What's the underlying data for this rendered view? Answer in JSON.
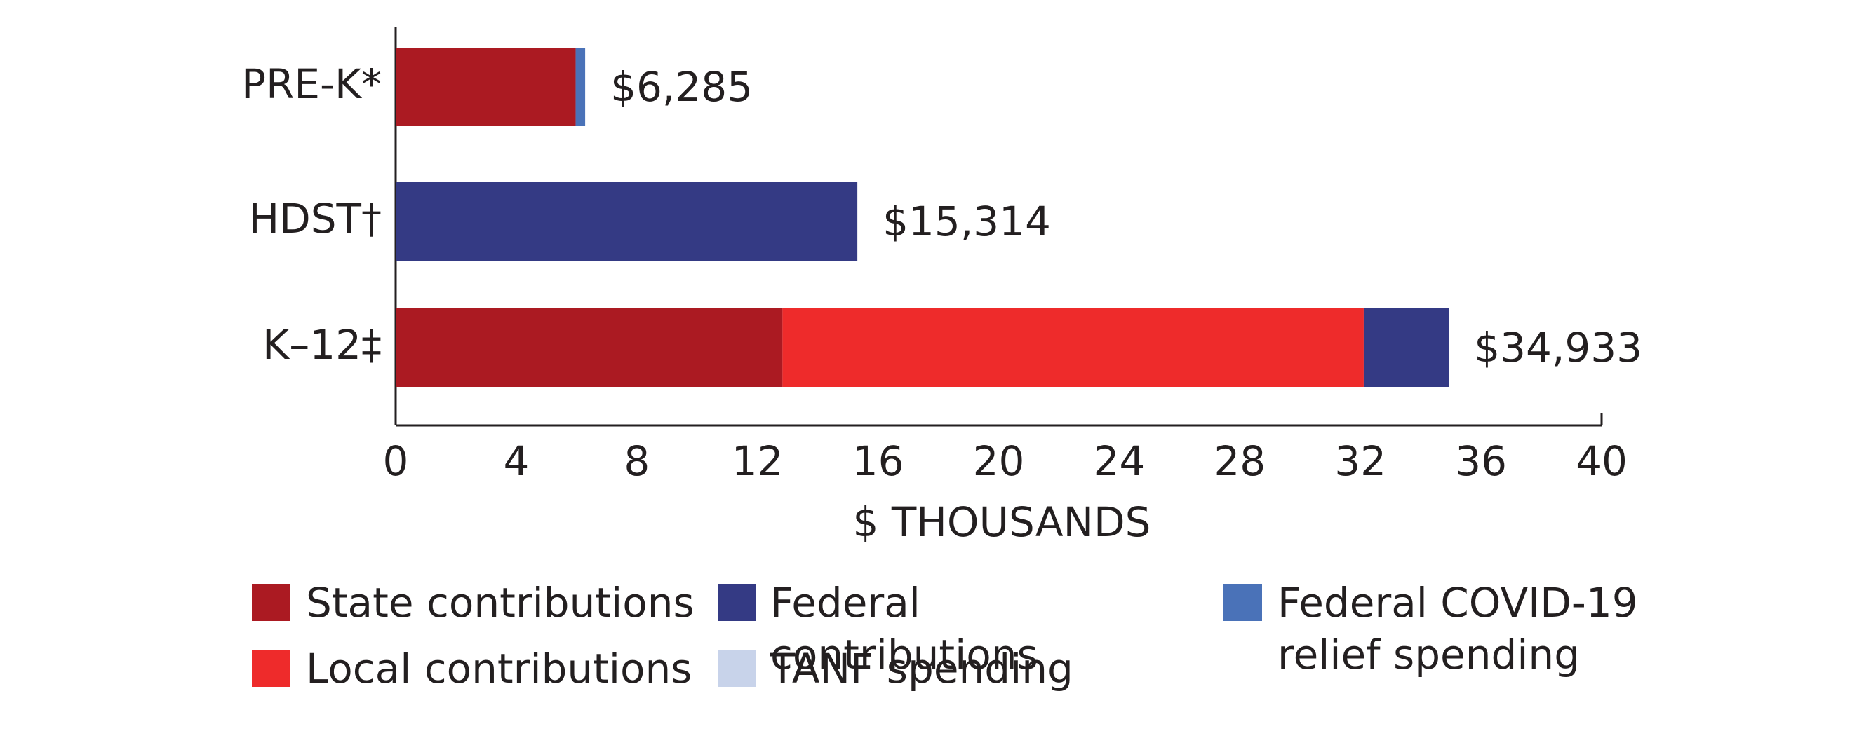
{
  "chart_data": {
    "type": "stacked-bar-horizontal",
    "categories": [
      "PRE-K*",
      "HDST†",
      "K–12‡"
    ],
    "series": [
      {
        "name": "State contributions",
        "color": "#ab1a22",
        "values": [
          5.97,
          null,
          12.83
        ]
      },
      {
        "name": "Local contributions",
        "color": "#ee2b2b",
        "values": [
          null,
          null,
          19.28
        ]
      },
      {
        "name": "Federal contributions",
        "color": "#343a84",
        "values": [
          null,
          15.314,
          2.82
        ]
      },
      {
        "name": "TANF spending",
        "color": "#c8d3ea",
        "values": [
          null,
          null,
          null
        ]
      },
      {
        "name": "Federal COVID-19 relief spending",
        "color": "#4a72b8",
        "values": [
          0.315,
          null,
          null
        ]
      }
    ],
    "totals": [
      6.285,
      15.314,
      34.933
    ],
    "total_labels": [
      "$6,285",
      "$15,314",
      "$34,933"
    ],
    "x_label": "$ THOUSANDS",
    "xlim": [
      0,
      40
    ],
    "xticks": [
      0,
      4,
      8,
      12,
      16,
      20,
      24,
      28,
      32,
      36,
      40
    ]
  }
}
